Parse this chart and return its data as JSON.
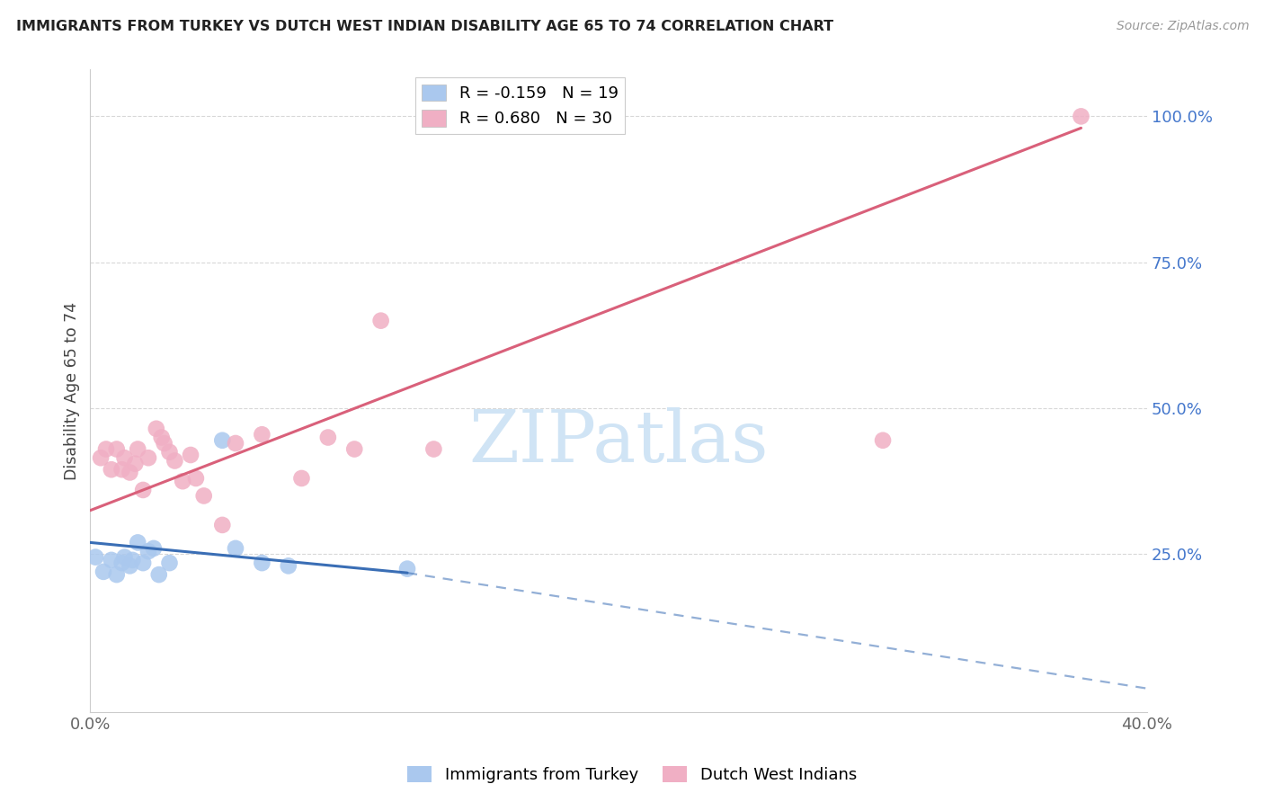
{
  "title": "IMMIGRANTS FROM TURKEY VS DUTCH WEST INDIAN DISABILITY AGE 65 TO 74 CORRELATION CHART",
  "source": "Source: ZipAtlas.com",
  "ylabel": "Disability Age 65 to 74",
  "xlim": [
    0.0,
    0.4
  ],
  "ylim": [
    -0.02,
    1.08
  ],
  "yticks": [
    0.25,
    0.5,
    0.75,
    1.0
  ],
  "ytick_labels": [
    "25.0%",
    "50.0%",
    "75.0%",
    "100.0%"
  ],
  "xticks": [
    0.0,
    0.1,
    0.2,
    0.3,
    0.4
  ],
  "xtick_labels": [
    "0.0%",
    "",
    "",
    "",
    "40.0%"
  ],
  "turkey_color": "#aac8ee",
  "dutch_color": "#f0afc4",
  "turkey_line_color": "#3a6eb5",
  "dutch_line_color": "#d9607a",
  "turkey_scatter": {
    "x": [
      0.002,
      0.005,
      0.008,
      0.01,
      0.012,
      0.013,
      0.015,
      0.016,
      0.018,
      0.02,
      0.022,
      0.024,
      0.026,
      0.03,
      0.05,
      0.055,
      0.065,
      0.075,
      0.12
    ],
    "y": [
      0.245,
      0.22,
      0.24,
      0.215,
      0.235,
      0.245,
      0.23,
      0.24,
      0.27,
      0.235,
      0.255,
      0.26,
      0.215,
      0.235,
      0.445,
      0.26,
      0.235,
      0.23,
      0.225
    ]
  },
  "dutch_scatter": {
    "x": [
      0.004,
      0.006,
      0.008,
      0.01,
      0.012,
      0.013,
      0.015,
      0.017,
      0.018,
      0.02,
      0.022,
      0.025,
      0.027,
      0.028,
      0.03,
      0.032,
      0.035,
      0.038,
      0.04,
      0.043,
      0.05,
      0.055,
      0.065,
      0.08,
      0.09,
      0.1,
      0.11,
      0.13,
      0.3,
      0.375
    ],
    "y": [
      0.415,
      0.43,
      0.395,
      0.43,
      0.395,
      0.415,
      0.39,
      0.405,
      0.43,
      0.36,
      0.415,
      0.465,
      0.45,
      0.44,
      0.425,
      0.41,
      0.375,
      0.42,
      0.38,
      0.35,
      0.3,
      0.44,
      0.455,
      0.38,
      0.45,
      0.43,
      0.65,
      0.43,
      0.445,
      1.0
    ]
  },
  "turkey_solid_line": {
    "x0": 0.0,
    "x1": 0.12,
    "y0": 0.27,
    "y1": 0.218
  },
  "turkey_dash_line": {
    "x0": 0.12,
    "x1": 0.4,
    "y0": 0.218,
    "y1": 0.02
  },
  "dutch_solid_line": {
    "x0": 0.0,
    "x1": 0.375,
    "y0": 0.325,
    "y1": 0.98
  },
  "background_color": "#ffffff",
  "grid_color": "#d8d8d8",
  "ytick_color": "#4477cc",
  "xtick_color": "#666666",
  "ylabel_color": "#444444",
  "title_color": "#222222",
  "source_color": "#999999",
  "watermark": "ZIPatlas",
  "watermark_color": "#d0e4f5",
  "legend1_label": "R = -0.159   N = 19",
  "legend2_label": "R = 0.680   N = 30",
  "bottom_legend1": "Immigrants from Turkey",
  "bottom_legend2": "Dutch West Indians"
}
